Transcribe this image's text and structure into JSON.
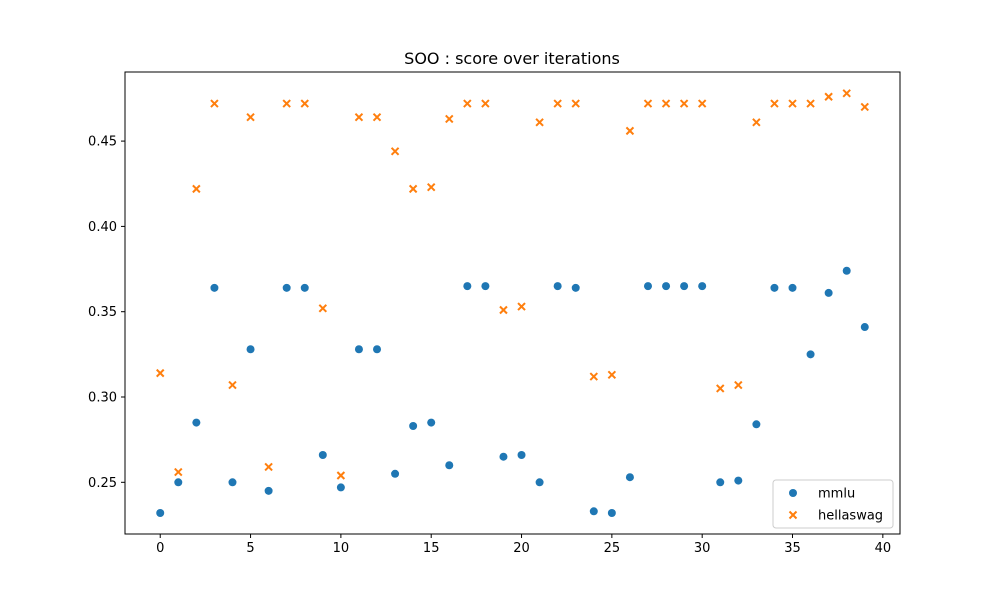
{
  "chart_data": {
    "type": "scatter",
    "title": "SOO : score over iterations",
    "xlabel": "",
    "ylabel": "",
    "xlim": [
      -1.95,
      40.95
    ],
    "ylim": [
      0.2197,
      0.4905
    ],
    "xticks": [
      0,
      5,
      10,
      15,
      20,
      25,
      30,
      35,
      40
    ],
    "xtick_labels": [
      "0",
      "5",
      "10",
      "15",
      "20",
      "25",
      "30",
      "35",
      "40"
    ],
    "yticks": [
      0.25,
      0.3,
      0.35,
      0.4,
      0.45
    ],
    "ytick_labels": [
      "0.25",
      "0.30",
      "0.35",
      "0.40",
      "0.45"
    ],
    "grid": false,
    "legend_position": "bottom-right",
    "x": [
      0,
      1,
      2,
      3,
      4,
      5,
      6,
      7,
      8,
      9,
      10,
      11,
      12,
      13,
      14,
      15,
      16,
      17,
      18,
      19,
      20,
      21,
      22,
      23,
      24,
      25,
      26,
      27,
      28,
      29,
      30,
      31,
      32,
      33,
      34,
      35,
      36,
      37,
      38,
      39
    ],
    "series": [
      {
        "name": "mmlu",
        "marker": "circle",
        "color": "#1f77b4",
        "values": [
          0.232,
          0.25,
          0.285,
          0.364,
          0.25,
          0.328,
          0.245,
          0.364,
          0.364,
          0.266,
          0.247,
          0.328,
          0.328,
          0.255,
          0.283,
          0.285,
          0.26,
          0.365,
          0.365,
          0.265,
          0.266,
          0.25,
          0.365,
          0.364,
          0.233,
          0.232,
          0.253,
          0.365,
          0.365,
          0.365,
          0.365,
          0.25,
          0.251,
          0.284,
          0.364,
          0.364,
          0.325,
          0.361,
          0.374,
          0.341
        ]
      },
      {
        "name": "hellaswag",
        "marker": "x",
        "color": "#ff7f0e",
        "values": [
          0.314,
          0.256,
          0.422,
          0.472,
          0.307,
          0.464,
          0.259,
          0.472,
          0.472,
          0.352,
          0.254,
          0.464,
          0.464,
          0.444,
          0.422,
          0.423,
          0.463,
          0.472,
          0.472,
          0.351,
          0.353,
          0.461,
          0.472,
          0.472,
          0.312,
          0.313,
          0.456,
          0.472,
          0.472,
          0.472,
          0.472,
          0.305,
          0.307,
          0.461,
          0.472,
          0.472,
          0.472,
          0.476,
          0.478,
          0.47
        ]
      }
    ]
  }
}
